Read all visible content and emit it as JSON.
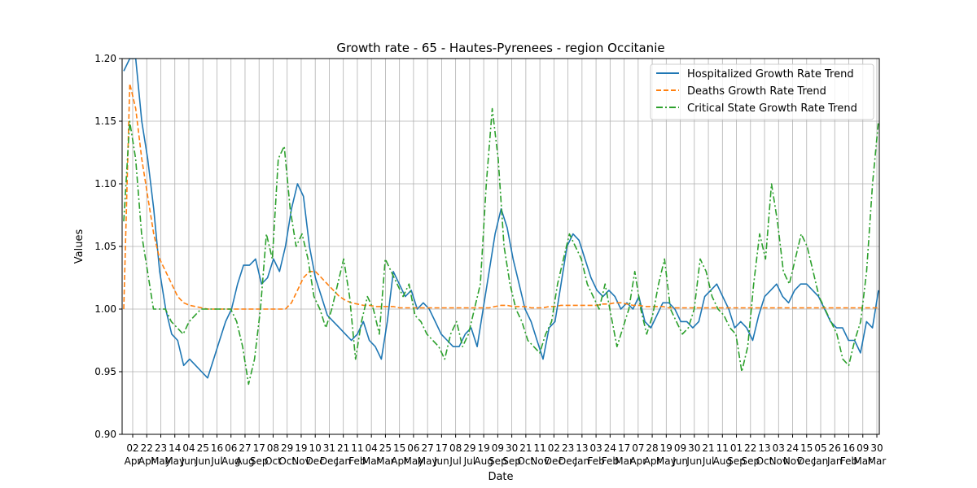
{
  "chart_data": {
    "type": "line",
    "title": "Growth rate - 65 - Hautes-Pyrenees - region Occitanie",
    "xlabel": "Date",
    "ylabel": "Values",
    "ylim": [
      0.9,
      1.2
    ],
    "yticks": [
      "0.90",
      "0.95",
      "1.00",
      "1.05",
      "1.10",
      "1.15",
      "1.20"
    ],
    "grid": true,
    "legend_position": "top-right",
    "x_ticks": [
      {
        "day": "02",
        "month": "Apr"
      },
      {
        "day": "22",
        "month": "Apr"
      },
      {
        "day": "23",
        "month": "May"
      },
      {
        "day": "14",
        "month": "May"
      },
      {
        "day": "04",
        "month": "Jun"
      },
      {
        "day": "25",
        "month": "Jun"
      },
      {
        "day": "16",
        "month": "Jul"
      },
      {
        "day": "06",
        "month": "Aug"
      },
      {
        "day": "27",
        "month": "Aug"
      },
      {
        "day": "17",
        "month": "Sep"
      },
      {
        "day": "08",
        "month": "Oct"
      },
      {
        "day": "29",
        "month": "Oct"
      },
      {
        "day": "19",
        "month": "Nov"
      },
      {
        "day": "10",
        "month": "Dec"
      },
      {
        "day": "31",
        "month": "Dec"
      },
      {
        "day": "21",
        "month": "Jan"
      },
      {
        "day": "11",
        "month": "Feb"
      },
      {
        "day": "04",
        "month": "Mar"
      },
      {
        "day": "25",
        "month": "Mar"
      },
      {
        "day": "15",
        "month": "Apr"
      },
      {
        "day": "06",
        "month": "May"
      },
      {
        "day": "27",
        "month": "May"
      },
      {
        "day": "17",
        "month": "Jun"
      },
      {
        "day": "08",
        "month": "Jul"
      },
      {
        "day": "29",
        "month": "Jul"
      },
      {
        "day": "19",
        "month": "Aug"
      },
      {
        "day": "09",
        "month": "Sep"
      },
      {
        "day": "30",
        "month": "Sep"
      },
      {
        "day": "21",
        "month": "Oct"
      },
      {
        "day": "11",
        "month": "Nov"
      },
      {
        "day": "02",
        "month": "Dec"
      },
      {
        "day": "23",
        "month": "Dec"
      },
      {
        "day": "13",
        "month": "Jan"
      },
      {
        "day": "03",
        "month": "Feb"
      },
      {
        "day": "24",
        "month": "Feb"
      },
      {
        "day": "17",
        "month": "Mar"
      },
      {
        "day": "07",
        "month": "Apr"
      },
      {
        "day": "28",
        "month": "Apr"
      },
      {
        "day": "19",
        "month": "May"
      },
      {
        "day": "09",
        "month": "Jun"
      },
      {
        "day": "30",
        "month": "Jun"
      },
      {
        "day": "21",
        "month": "Jul"
      },
      {
        "day": "11",
        "month": "Aug"
      },
      {
        "day": "01",
        "month": "Sep"
      },
      {
        "day": "22",
        "month": "Sep"
      },
      {
        "day": "13",
        "month": "Oct"
      },
      {
        "day": "03",
        "month": "Nov"
      },
      {
        "day": "24",
        "month": "Nov"
      },
      {
        "day": "15",
        "month": "Dec"
      },
      {
        "day": "05",
        "month": "Jan"
      },
      {
        "day": "26",
        "month": "Jan"
      },
      {
        "day": "16",
        "month": "Feb"
      },
      {
        "day": "09",
        "month": "Mar"
      },
      {
        "day": "30",
        "month": "Mar"
      }
    ],
    "series": [
      {
        "name": "Hospitalized Growth Rate Trend",
        "color": "#1f77b4",
        "style": "solid",
        "values": [
          1.19,
          1.2,
          1.2,
          1.15,
          1.12,
          1.08,
          1.03,
          1.0,
          0.98,
          0.975,
          0.955,
          0.96,
          0.955,
          0.95,
          0.945,
          0.96,
          0.975,
          0.99,
          1.0,
          1.02,
          1.035,
          1.035,
          1.04,
          1.02,
          1.025,
          1.04,
          1.03,
          1.05,
          1.08,
          1.1,
          1.09,
          1.05,
          1.025,
          1.01,
          0.995,
          0.99,
          0.985,
          0.98,
          0.975,
          0.98,
          0.99,
          0.975,
          0.97,
          0.96,
          0.99,
          1.03,
          1.02,
          1.01,
          1.015,
          1.0,
          1.005,
          1.0,
          0.99,
          0.98,
          0.975,
          0.97,
          0.97,
          0.98,
          0.985,
          0.97,
          1.0,
          1.03,
          1.06,
          1.08,
          1.065,
          1.04,
          1.02,
          1.0,
          0.99,
          0.975,
          0.96,
          0.985,
          0.99,
          1.02,
          1.05,
          1.06,
          1.055,
          1.04,
          1.025,
          1.015,
          1.01,
          1.015,
          1.01,
          1.0,
          1.005,
          1.0,
          1.01,
          0.99,
          0.985,
          0.995,
          1.005,
          1.005,
          1.0,
          0.99,
          0.99,
          0.985,
          0.99,
          1.01,
          1.015,
          1.02,
          1.01,
          1.0,
          0.985,
          0.99,
          0.985,
          0.975,
          0.995,
          1.01,
          1.015,
          1.02,
          1.01,
          1.005,
          1.015,
          1.02,
          1.02,
          1.015,
          1.01,
          1.0,
          0.99,
          0.985,
          0.985,
          0.975,
          0.975,
          0.965,
          0.99,
          0.985,
          1.015
        ]
      },
      {
        "name": "Deaths Growth Rate Trend",
        "color": "#ff7f0e",
        "style": "dashed",
        "values": [
          1.0,
          1.18,
          1.16,
          1.12,
          1.09,
          1.06,
          1.04,
          1.03,
          1.02,
          1.01,
          1.005,
          1.003,
          1.002,
          1.001,
          1.0,
          1.0,
          1.0,
          1.0,
          1.0,
          1.0,
          1.0,
          1.0,
          1.0,
          1.0,
          1.0,
          1.0,
          1.0,
          1.0,
          1.005,
          1.015,
          1.025,
          1.03,
          1.03,
          1.025,
          1.02,
          1.015,
          1.01,
          1.007,
          1.005,
          1.004,
          1.003,
          1.003,
          1.002,
          1.002,
          1.002,
          1.002,
          1.001,
          1.001,
          1.001,
          1.001,
          1.001,
          1.001,
          1.001,
          1.001,
          1.001,
          1.001,
          1.001,
          1.001,
          1.001,
          1.001,
          1.001,
          1.001,
          1.002,
          1.003,
          1.003,
          1.002,
          1.002,
          1.002,
          1.001,
          1.001,
          1.001,
          1.002,
          1.002,
          1.003,
          1.003,
          1.003,
          1.003,
          1.003,
          1.003,
          1.003,
          1.004,
          1.004,
          1.005,
          1.005,
          1.004,
          1.003,
          1.003,
          1.002,
          1.002,
          1.002,
          1.002,
          1.001,
          1.001,
          1.001,
          1.001,
          1.001,
          1.001,
          1.001,
          1.001,
          1.001,
          1.001,
          1.001,
          1.001,
          1.001,
          1.001,
          1.001,
          1.001,
          1.001,
          1.001,
          1.001,
          1.001,
          1.001,
          1.001,
          1.001,
          1.001,
          1.001,
          1.001,
          1.001,
          1.001,
          1.001,
          1.001,
          1.001,
          1.001,
          1.001,
          1.001,
          1.001,
          1.001
        ]
      },
      {
        "name": "Critical State Growth Rate Trend",
        "color": "#2ca02c",
        "style": "dashdot",
        "values": [
          1.07,
          1.15,
          1.12,
          1.06,
          1.03,
          1.0,
          1.0,
          1.0,
          0.99,
          0.985,
          0.98,
          0.99,
          0.995,
          1.0,
          1.0,
          1.0,
          1.0,
          1.0,
          1.0,
          0.99,
          0.97,
          0.94,
          0.96,
          1.0,
          1.06,
          1.04,
          1.12,
          1.13,
          1.08,
          1.05,
          1.06,
          1.04,
          1.01,
          1.0,
          0.985,
          1.0,
          1.02,
          1.04,
          1.01,
          0.96,
          0.99,
          1.01,
          1.0,
          0.98,
          1.04,
          1.03,
          1.02,
          1.01,
          1.02,
          0.995,
          0.99,
          0.98,
          0.975,
          0.97,
          0.96,
          0.98,
          0.99,
          0.97,
          0.98,
          1.0,
          1.02,
          1.1,
          1.16,
          1.12,
          1.05,
          1.02,
          1.0,
          0.99,
          0.975,
          0.97,
          0.965,
          0.98,
          0.99,
          1.02,
          1.04,
          1.06,
          1.05,
          1.04,
          1.02,
          1.01,
          1.0,
          1.02,
          0.995,
          0.97,
          0.985,
          1.0,
          1.03,
          1.0,
          0.98,
          0.995,
          1.02,
          1.04,
          1.0,
          0.99,
          0.98,
          0.985,
          1.0,
          1.04,
          1.03,
          1.01,
          1.0,
          0.995,
          0.985,
          0.98,
          0.95,
          0.97,
          1.02,
          1.06,
          1.04,
          1.1,
          1.07,
          1.03,
          1.02,
          1.04,
          1.06,
          1.05,
          1.03,
          1.01,
          1.0,
          0.99,
          0.98,
          0.96,
          0.955,
          0.975,
          0.99,
          1.03,
          1.1,
          1.15
        ]
      }
    ]
  }
}
